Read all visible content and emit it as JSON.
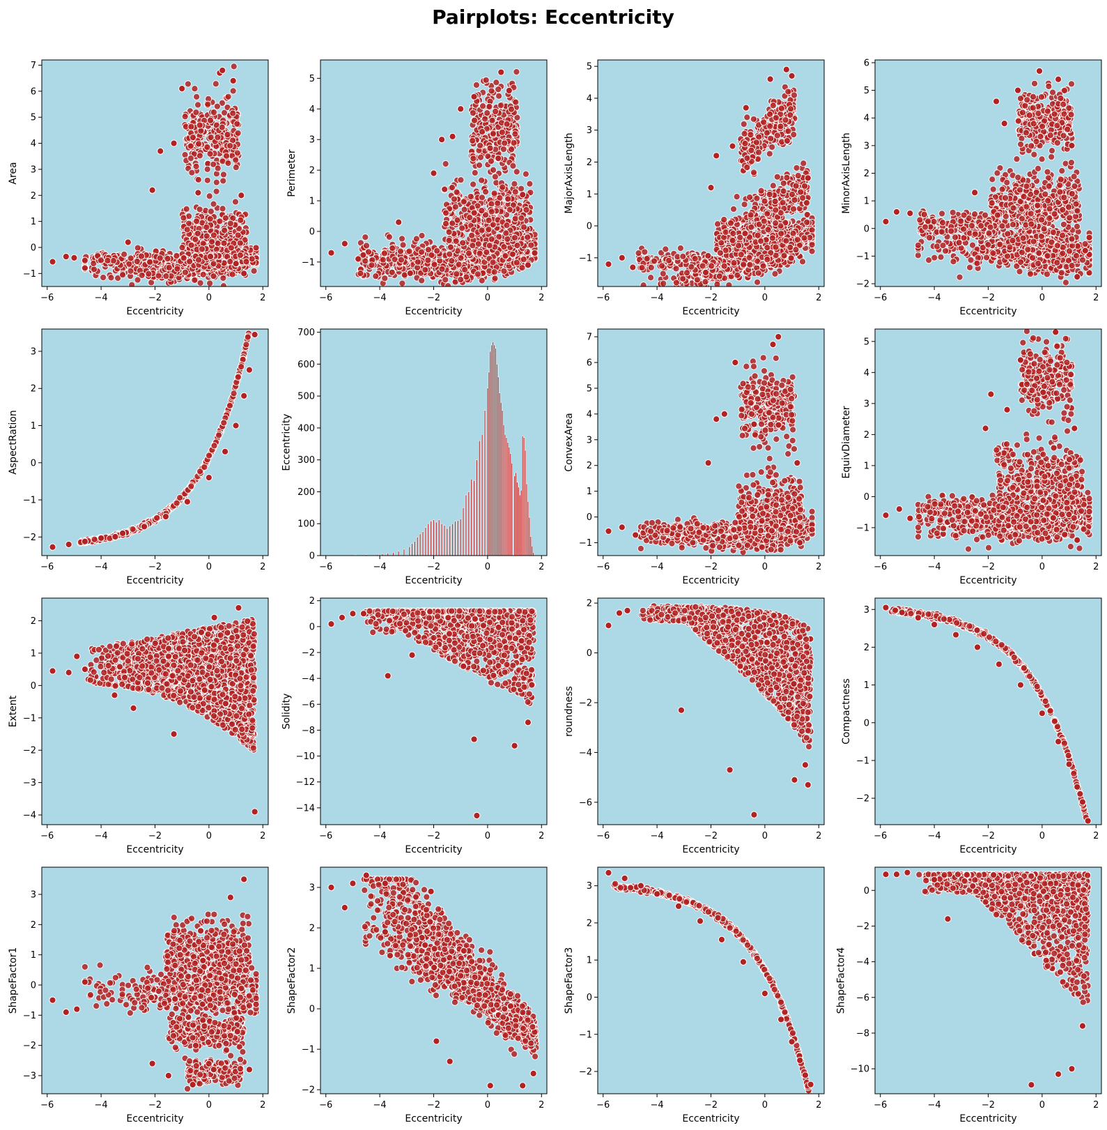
{
  "figure": {
    "title": "Pairplots: Eccentricity",
    "background": "#ffffff",
    "axes_facecolor": "#add8e6",
    "marker_color": "#b22222",
    "marker_edge": "#ffffff"
  },
  "chart_data": [
    {
      "type": "scatter",
      "xlabel": "Eccentricity",
      "ylabel": "Area",
      "xlim": [
        -6.2,
        2.2
      ],
      "ylim": [
        -1.5,
        7.2
      ],
      "xticks": [
        -6,
        -4,
        -2,
        0,
        2
      ],
      "yticks": [
        -1,
        0,
        1,
        2,
        3,
        4,
        5,
        6,
        7
      ],
      "shape": "area_like",
      "points": [
        [
          -5.8,
          -0.55
        ],
        [
          -5.3,
          -0.35
        ],
        [
          -5.0,
          -0.4
        ],
        [
          -4.6,
          -0.5
        ],
        [
          -3.0,
          0.2
        ],
        [
          -2.1,
          2.2
        ],
        [
          -1.8,
          3.7
        ],
        [
          -1.3,
          4.0
        ],
        [
          -1.0,
          6.1
        ],
        [
          -0.4,
          2.1
        ],
        [
          0.4,
          6.7
        ],
        [
          0.5,
          6.8
        ],
        [
          0.9,
          6.4
        ],
        [
          1.2,
          2.0
        ],
        [
          1.3,
          -1.0
        ]
      ]
    },
    {
      "type": "scatter",
      "xlabel": "Eccentricity",
      "ylabel": "Perimeter",
      "xlim": [
        -6.2,
        2.2
      ],
      "ylim": [
        -1.8,
        5.6
      ],
      "xticks": [
        -6,
        -4,
        -2,
        0,
        2
      ],
      "yticks": [
        -1,
        0,
        1,
        2,
        3,
        4,
        5
      ],
      "shape": "perimeter_like",
      "points": [
        [
          -5.8,
          -0.7
        ],
        [
          -5.3,
          -0.4
        ],
        [
          -4.8,
          -0.9
        ],
        [
          -3.3,
          0.3
        ],
        [
          -2.0,
          1.9
        ],
        [
          -1.7,
          3.0
        ],
        [
          -1.3,
          3.1
        ],
        [
          -1.0,
          4.0
        ],
        [
          -0.5,
          4.4
        ],
        [
          0.5,
          5.2
        ],
        [
          0.8,
          4.6
        ],
        [
          1.3,
          1.2
        ],
        [
          1.5,
          -1.1
        ]
      ]
    },
    {
      "type": "scatter",
      "xlabel": "Eccentricity",
      "ylabel": "MajorAxisLength",
      "xlim": [
        -6.2,
        2.2
      ],
      "ylim": [
        -1.9,
        5.2
      ],
      "xticks": [
        -6,
        -4,
        -2,
        0,
        2
      ],
      "yticks": [
        -1,
        0,
        1,
        2,
        3,
        4,
        5
      ],
      "shape": "major_like",
      "points": [
        [
          -5.8,
          -1.2
        ],
        [
          -5.3,
          -1.0
        ],
        [
          -4.9,
          -1.3
        ],
        [
          -2.0,
          1.2
        ],
        [
          -1.8,
          2.2
        ],
        [
          -1.2,
          2.5
        ],
        [
          -0.7,
          3.7
        ],
        [
          0.2,
          4.6
        ],
        [
          0.8,
          4.9
        ],
        [
          1.0,
          4.7
        ],
        [
          1.6,
          1.5
        ]
      ]
    },
    {
      "type": "scatter",
      "xlabel": "Eccentricity",
      "ylabel": "MinorAxisLength",
      "xlim": [
        -6.2,
        2.2
      ],
      "ylim": [
        -2.1,
        6.1
      ],
      "xticks": [
        -6,
        -4,
        -2,
        0,
        2
      ],
      "yticks": [
        -2,
        -1,
        0,
        1,
        2,
        3,
        4,
        5,
        6
      ],
      "shape": "minor_like",
      "points": [
        [
          -5.8,
          0.25
        ],
        [
          -5.4,
          0.6
        ],
        [
          -4.9,
          0.55
        ],
        [
          -2.5,
          1.3
        ],
        [
          -1.7,
          4.6
        ],
        [
          -1.4,
          3.8
        ],
        [
          -0.9,
          5.0
        ],
        [
          -0.1,
          5.7
        ],
        [
          0.6,
          5.4
        ],
        [
          1.1,
          3.0
        ],
        [
          1.3,
          -1.75
        ],
        [
          1.6,
          -0.8
        ]
      ]
    },
    {
      "type": "scatter",
      "xlabel": "Eccentricity",
      "ylabel": "AspectRation",
      "xlim": [
        -6.2,
        2.2
      ],
      "ylim": [
        -2.5,
        3.6
      ],
      "xticks": [
        -6,
        -4,
        -2,
        0,
        2
      ],
      "yticks": [
        -2,
        -1,
        0,
        1,
        2,
        3
      ],
      "shape": "curve_up",
      "points": [
        [
          -5.8,
          -2.27
        ],
        [
          -5.2,
          -2.2
        ],
        [
          -4.6,
          -2.12
        ],
        [
          -4.0,
          -2.03
        ],
        [
          -3.2,
          -1.9
        ],
        [
          -2.4,
          -1.72
        ],
        [
          -1.6,
          -1.45
        ],
        [
          -0.8,
          -1.05
        ],
        [
          0.0,
          -0.4
        ],
        [
          0.6,
          0.3
        ],
        [
          1.0,
          1.0
        ],
        [
          1.3,
          1.8
        ],
        [
          1.5,
          2.5
        ],
        [
          1.7,
          3.45
        ]
      ]
    },
    {
      "type": "bar",
      "xlabel": "Eccentricity",
      "ylabel": "Eccentricity",
      "xlim": [
        -6.2,
        2.2
      ],
      "ylim": [
        0,
        710
      ],
      "xticks": [
        -6,
        -4,
        -2,
        0,
        2
      ],
      "yticks": [
        0,
        100,
        200,
        300,
        400,
        500,
        600,
        700
      ],
      "bins": [
        [
          -4.9,
          2
        ],
        [
          -4.5,
          3
        ],
        [
          -4.1,
          4
        ],
        [
          -3.9,
          6
        ],
        [
          -3.7,
          8
        ],
        [
          -3.5,
          10
        ],
        [
          -3.3,
          14
        ],
        [
          -3.1,
          20
        ],
        [
          -2.9,
          28
        ],
        [
          -2.8,
          38
        ],
        [
          -2.7,
          45
        ],
        [
          -2.6,
          58
        ],
        [
          -2.5,
          68
        ],
        [
          -2.4,
          75
        ],
        [
          -2.3,
          88
        ],
        [
          -2.2,
          100
        ],
        [
          -2.1,
          108
        ],
        [
          -2.0,
          112
        ],
        [
          -1.9,
          105
        ],
        [
          -1.8,
          112
        ],
        [
          -1.7,
          100
        ],
        [
          -1.6,
          95
        ],
        [
          -1.5,
          85
        ],
        [
          -1.4,
          93
        ],
        [
          -1.3,
          100
        ],
        [
          -1.2,
          108
        ],
        [
          -1.1,
          110
        ],
        [
          -1.0,
          115
        ],
        [
          -0.9,
          150
        ],
        [
          -0.8,
          190
        ],
        [
          -0.7,
          200
        ],
        [
          -0.6,
          240
        ],
        [
          -0.5,
          235
        ],
        [
          -0.4,
          300
        ],
        [
          -0.3,
          360
        ],
        [
          -0.2,
          380
        ],
        [
          -0.1,
          455
        ],
        [
          0.0,
          525
        ],
        [
          0.05,
          575
        ],
        [
          0.1,
          640
        ],
        [
          0.15,
          660
        ],
        [
          0.2,
          670
        ],
        [
          0.25,
          660
        ],
        [
          0.3,
          650
        ],
        [
          0.35,
          600
        ],
        [
          0.4,
          560
        ],
        [
          0.45,
          510
        ],
        [
          0.5,
          480
        ],
        [
          0.55,
          455
        ],
        [
          0.6,
          410
        ],
        [
          0.65,
          380
        ],
        [
          0.7,
          370
        ],
        [
          0.75,
          355
        ],
        [
          0.8,
          340
        ],
        [
          0.85,
          320
        ],
        [
          0.9,
          290
        ],
        [
          1.0,
          250
        ],
        [
          1.05,
          260
        ],
        [
          1.1,
          230
        ],
        [
          1.15,
          215
        ],
        [
          1.2,
          190
        ],
        [
          1.25,
          205
        ],
        [
          1.3,
          375
        ],
        [
          1.35,
          370
        ],
        [
          1.4,
          330
        ],
        [
          1.45,
          225
        ],
        [
          1.5,
          170
        ],
        [
          1.55,
          120
        ],
        [
          1.6,
          60
        ],
        [
          1.65,
          30
        ],
        [
          1.7,
          10
        ]
      ]
    },
    {
      "type": "scatter",
      "xlabel": "Eccentricity",
      "ylabel": "ConvexArea",
      "xlim": [
        -6.2,
        2.2
      ],
      "ylim": [
        -1.5,
        7.3
      ],
      "xticks": [
        -6,
        -4,
        -2,
        0,
        2
      ],
      "yticks": [
        -1,
        0,
        1,
        2,
        3,
        4,
        5,
        6,
        7
      ],
      "shape": "area_like",
      "points": [
        [
          -5.8,
          -0.55
        ],
        [
          -5.3,
          -0.4
        ],
        [
          -4.8,
          -0.7
        ],
        [
          -2.1,
          2.1
        ],
        [
          -1.8,
          3.8
        ],
        [
          -1.5,
          4.0
        ],
        [
          -1.1,
          6.0
        ],
        [
          -0.4,
          3.6
        ],
        [
          0.3,
          6.7
        ],
        [
          0.5,
          7.0
        ],
        [
          1.2,
          2.1
        ],
        [
          1.3,
          -1.0
        ]
      ]
    },
    {
      "type": "scatter",
      "xlabel": "Eccentricity",
      "ylabel": "EquivDiameter",
      "xlim": [
        -6.2,
        2.2
      ],
      "ylim": [
        -1.9,
        5.4
      ],
      "xticks": [
        -6,
        -4,
        -2,
        0,
        2
      ],
      "yticks": [
        -1,
        0,
        1,
        2,
        3,
        4,
        5
      ],
      "shape": "equiv_like",
      "points": [
        [
          -5.8,
          -0.6
        ],
        [
          -5.3,
          -0.4
        ],
        [
          -4.9,
          -0.7
        ],
        [
          -2.1,
          2.2
        ],
        [
          -1.9,
          3.3
        ],
        [
          -1.3,
          2.8
        ],
        [
          -0.8,
          4.4
        ],
        [
          0.5,
          5.3
        ],
        [
          1.2,
          2.2
        ],
        [
          1.3,
          -1.4
        ]
      ]
    },
    {
      "type": "scatter",
      "xlabel": "Eccentricity",
      "ylabel": "Extent",
      "xlim": [
        -6.2,
        2.2
      ],
      "ylim": [
        -4.3,
        2.7
      ],
      "xticks": [
        -6,
        -4,
        -2,
        0,
        2
      ],
      "yticks": [
        -4,
        -3,
        -2,
        -1,
        0,
        1,
        2
      ],
      "shape": "extent_like",
      "points": [
        [
          -5.8,
          0.45
        ],
        [
          -5.2,
          0.4
        ],
        [
          -4.9,
          0.9
        ],
        [
          -4.6,
          0.5
        ],
        [
          -3.5,
          -0.3
        ],
        [
          -2.8,
          -0.7
        ],
        [
          -1.3,
          -1.5
        ],
        [
          0.2,
          2.1
        ],
        [
          1.1,
          2.4
        ],
        [
          1.7,
          -3.9
        ]
      ]
    },
    {
      "type": "scatter",
      "xlabel": "Eccentricity",
      "ylabel": "Solidity",
      "xlim": [
        -6.2,
        2.2
      ],
      "ylim": [
        -15.3,
        2.2
      ],
      "xticks": [
        -6,
        -4,
        -2,
        0,
        2
      ],
      "yticks": [
        -14,
        -12,
        -10,
        -8,
        -6,
        -4,
        -2,
        0,
        2
      ],
      "shape": "solidity_like",
      "points": [
        [
          -5.8,
          0.2
        ],
        [
          -5.4,
          0.7
        ],
        [
          -5.0,
          1.0
        ],
        [
          -4.6,
          1.0
        ],
        [
          -3.7,
          -3.8
        ],
        [
          -2.8,
          -2.2
        ],
        [
          -0.5,
          -8.7
        ],
        [
          -0.4,
          -14.6
        ],
        [
          1.0,
          -9.2
        ],
        [
          1.5,
          -7.4
        ]
      ]
    },
    {
      "type": "scatter",
      "xlabel": "Eccentricity",
      "ylabel": "roundness",
      "xlim": [
        -6.2,
        2.2
      ],
      "ylim": [
        -6.9,
        2.2
      ],
      "xticks": [
        -6,
        -4,
        -2,
        0,
        2
      ],
      "yticks": [
        -6,
        -4,
        -2,
        0,
        2
      ],
      "shape": "roundness_like",
      "points": [
        [
          -5.8,
          1.1
        ],
        [
          -5.4,
          1.6
        ],
        [
          -5.1,
          1.7
        ],
        [
          -3.1,
          -2.3
        ],
        [
          -1.3,
          -4.7
        ],
        [
          -0.4,
          -6.5
        ],
        [
          1.1,
          -5.1
        ],
        [
          1.5,
          -4.5
        ],
        [
          1.6,
          -5.3
        ]
      ]
    },
    {
      "type": "scatter",
      "xlabel": "Eccentricity",
      "ylabel": "Compactness",
      "xlim": [
        -6.2,
        2.2
      ],
      "ylim": [
        -2.7,
        3.3
      ],
      "xticks": [
        -6,
        -4,
        -2,
        0,
        2
      ],
      "yticks": [
        -2,
        -1,
        0,
        1,
        2,
        3
      ],
      "shape": "curve_down",
      "points": [
        [
          -5.8,
          3.05
        ],
        [
          -5.2,
          2.92
        ],
        [
          -4.6,
          2.78
        ],
        [
          -4.0,
          2.6
        ],
        [
          -3.2,
          2.33
        ],
        [
          -2.4,
          2.0
        ],
        [
          -1.6,
          1.55
        ],
        [
          -0.8,
          1.0
        ],
        [
          0.0,
          0.25
        ],
        [
          0.6,
          -0.5
        ],
        [
          1.0,
          -1.1
        ],
        [
          1.3,
          -1.7
        ],
        [
          1.5,
          -2.1
        ],
        [
          1.7,
          -2.6
        ]
      ]
    },
    {
      "type": "scatter",
      "xlabel": "Eccentricity",
      "ylabel": "ShapeFactor1",
      "xlim": [
        -6.2,
        2.2
      ],
      "ylim": [
        -3.6,
        3.9
      ],
      "xticks": [
        -6,
        -4,
        -2,
        0,
        2
      ],
      "yticks": [
        -3,
        -2,
        -1,
        0,
        1,
        2,
        3
      ],
      "shape": "sf1_like",
      "points": [
        [
          -5.8,
          -0.5
        ],
        [
          -5.3,
          -0.9
        ],
        [
          -4.9,
          -0.8
        ],
        [
          -4.6,
          0.1
        ],
        [
          -2.1,
          -2.6
        ],
        [
          -1.5,
          -3.0
        ],
        [
          -0.6,
          -3.3
        ],
        [
          0.8,
          2.9
        ],
        [
          1.3,
          3.5
        ],
        [
          1.5,
          -2.8
        ]
      ]
    },
    {
      "type": "scatter",
      "xlabel": "Eccentricity",
      "ylabel": "ShapeFactor2",
      "xlim": [
        -6.2,
        2.2
      ],
      "ylim": [
        -2.1,
        3.5
      ],
      "xticks": [
        -6,
        -4,
        -2,
        0,
        2
      ],
      "yticks": [
        -2,
        -1,
        0,
        1,
        2,
        3
      ],
      "shape": "sf2_like",
      "points": [
        [
          -5.8,
          3.0
        ],
        [
          -5.3,
          2.5
        ],
        [
          -5.0,
          3.1
        ],
        [
          -4.5,
          3.3
        ],
        [
          -3.8,
          3.1
        ],
        [
          -3.8,
          1.9
        ],
        [
          -2.1,
          2.9
        ],
        [
          -1.9,
          -0.8
        ],
        [
          -1.4,
          -1.3
        ],
        [
          0.1,
          -1.9
        ],
        [
          1.3,
          -1.9
        ],
        [
          1.7,
          -1.6
        ]
      ]
    },
    {
      "type": "scatter",
      "xlabel": "Eccentricity",
      "ylabel": "ShapeFactor3",
      "xlim": [
        -6.2,
        2.2
      ],
      "ylim": [
        -2.6,
        3.5
      ],
      "xticks": [
        -6,
        -4,
        -2,
        0,
        2
      ],
      "yticks": [
        -2,
        -1,
        0,
        1,
        2,
        3
      ],
      "shape": "curve_down",
      "points": [
        [
          -5.8,
          3.35
        ],
        [
          -5.2,
          3.2
        ],
        [
          -4.6,
          3.0
        ],
        [
          -4.0,
          2.78
        ],
        [
          -3.2,
          2.45
        ],
        [
          -2.4,
          2.05
        ],
        [
          -1.6,
          1.55
        ],
        [
          -0.8,
          0.95
        ],
        [
          0.0,
          0.1
        ],
        [
          0.6,
          -0.6
        ],
        [
          1.0,
          -1.2
        ],
        [
          1.3,
          -1.7
        ],
        [
          1.5,
          -2.1
        ],
        [
          1.7,
          -2.35
        ]
      ]
    },
    {
      "type": "scatter",
      "xlabel": "Eccentricity",
      "ylabel": "ShapeFactor4",
      "xlim": [
        -6.2,
        2.2
      ],
      "ylim": [
        -11.4,
        1.3
      ],
      "xticks": [
        -6,
        -4,
        -2,
        0,
        2
      ],
      "yticks": [
        -10,
        -8,
        -6,
        -4,
        -2,
        0
      ],
      "shape": "sf4_like",
      "points": [
        [
          -5.8,
          0.9
        ],
        [
          -5.4,
          0.9
        ],
        [
          -5.0,
          1.0
        ],
        [
          -4.0,
          0.6
        ],
        [
          -3.5,
          -1.6
        ],
        [
          -0.4,
          -10.9
        ],
        [
          0.6,
          -10.3
        ],
        [
          1.1,
          -10.0
        ],
        [
          1.5,
          -7.6
        ]
      ]
    }
  ]
}
